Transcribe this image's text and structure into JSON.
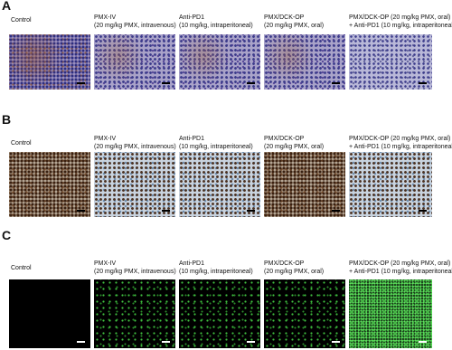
{
  "panels": [
    {
      "letter": "A",
      "columns": [
        {
          "lines": [
            "Control"
          ]
        },
        {
          "lines": [
            "PMX-IV",
            "(20 mg/kg PMX, intravenous)"
          ]
        },
        {
          "lines": [
            "Anti-PD1",
            "(10 mg/kg, intraperitoneal)"
          ]
        },
        {
          "lines": [
            "PMX/DCK-OP",
            "(20 mg/kg PMX, oral)"
          ]
        },
        {
          "lines": [
            "PMX/DCK-OP (20 mg/kg PMX, oral)",
            "+ Anti-PD1 (10 mg/kg, intraperitoneal)"
          ]
        }
      ]
    },
    {
      "letter": "B",
      "columns": [
        {
          "lines": [
            "Control"
          ]
        },
        {
          "lines": [
            "PMX-IV",
            "(20 mg/kg PMX, intravenous)"
          ]
        },
        {
          "lines": [
            "Anti-PD1",
            "(10 mg/kg, intraperitoneal)"
          ]
        },
        {
          "lines": [
            "PMX/DCK-OP",
            "(20 mg/kg PMX, oral)"
          ]
        },
        {
          "lines": [
            "PMX/DCK-OP (20 mg/kg PMX, oral)",
            "+ Anti-PD1 (10 mg/kg, intraperitoneal)"
          ]
        }
      ]
    },
    {
      "letter": "C",
      "columns": [
        {
          "lines": [
            "Control"
          ]
        },
        {
          "lines": [
            "PMX-IV",
            "(20 mg/kg PMX, intravenous)"
          ]
        },
        {
          "lines": [
            "Anti-PD1",
            "(10 mg/kg, intraperitoneal)"
          ]
        },
        {
          "lines": [
            "PMX/DCK-OP",
            "(20 mg/kg PMX, oral)"
          ]
        },
        {
          "lines": [
            "PMX/DCK-OP (20 mg/kg PMX, oral)",
            "+ Anti-PD1 (10 mg/kg, intraperitoneal)"
          ]
        }
      ]
    }
  ]
}
